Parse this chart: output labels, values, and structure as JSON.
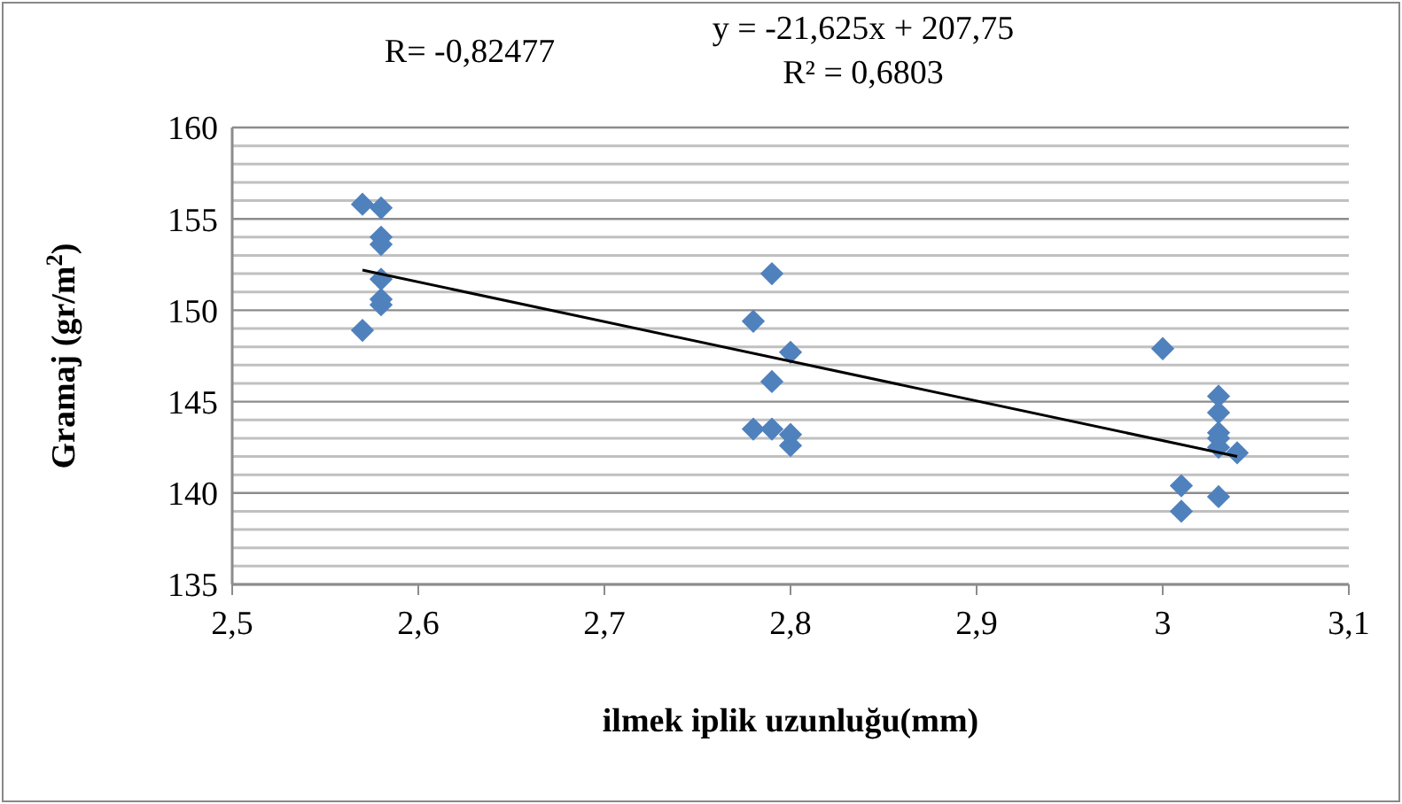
{
  "chart_data": {
    "type": "scatter",
    "xlabel": "ilmek iplik uzunluğu(mm)",
    "ylabel": "Gramaj (gr/m$^{2}$)",
    "annotations": [
      "R= -0,82477",
      "y = -21,625x + 207,75",
      "R² = 0,6803"
    ],
    "series": [
      {
        "color": "#4f81bd",
        "marker": "diamond",
        "x": [
          2.57,
          2.58,
          2.58,
          2.58,
          2.58,
          2.58,
          2.58,
          2.57,
          2.79,
          2.78,
          2.8,
          2.79,
          2.78,
          2.79,
          2.8,
          2.8,
          3.0,
          3.03,
          3.03,
          3.03,
          3.03,
          3.03,
          3.04,
          3.01,
          3.01,
          3.03
        ],
        "values": [
          155.8,
          155.6,
          154,
          153.6,
          151.7,
          150.6,
          150.3,
          148.9,
          152,
          149.4,
          147.7,
          146.1,
          143.5,
          143.5,
          143.2,
          142.6,
          147.9,
          145.3,
          144.4,
          143.3,
          143,
          142.5,
          142.2,
          140.4,
          139,
          139.8
        ]
      },
      {
        "type": "line",
        "color": "#000000",
        "x": [
          2.57,
          3.04
        ],
        "values": [
          152.2,
          142.0
        ]
      }
    ],
    "xlim": [
      2.5,
      3.1
    ],
    "ylim": [
      135,
      160
    ],
    "xticks": [
      {
        "value": 2.5,
        "label": "2,5"
      },
      {
        "value": 2.6,
        "label": "2,6"
      },
      {
        "value": 2.7,
        "label": "2,7"
      },
      {
        "value": 2.8,
        "label": "2,8"
      },
      {
        "value": 2.9,
        "label": "2,9"
      },
      {
        "value": 3,
        "label": "3"
      },
      {
        "value": 3.1,
        "label": "3,1"
      }
    ],
    "yticks": [
      135,
      {
        "value": 136,
        "label": null
      },
      {
        "value": 137,
        "label": null
      },
      {
        "value": 138,
        "label": null
      },
      {
        "value": 139,
        "label": null
      },
      140,
      {
        "value": 141,
        "label": null
      },
      {
        "value": 142,
        "label": null
      },
      {
        "value": 143,
        "label": null
      },
      {
        "value": 144,
        "label": null
      },
      145,
      {
        "value": 146,
        "label": null
      },
      {
        "value": 147,
        "label": null
      },
      {
        "value": 148,
        "label": null
      },
      {
        "value": 149,
        "label": null
      },
      150,
      {
        "value": 151,
        "label": null
      },
      {
        "value": 152,
        "label": null
      },
      {
        "value": 153,
        "label": null
      },
      {
        "value": 154,
        "label": null
      },
      155,
      {
        "value": 156,
        "label": null
      },
      {
        "value": 157,
        "label": null
      },
      {
        "value": 158,
        "label": null
      },
      {
        "value": 159,
        "label": null
      },
      160
    ],
    "grid": "y"
  }
}
